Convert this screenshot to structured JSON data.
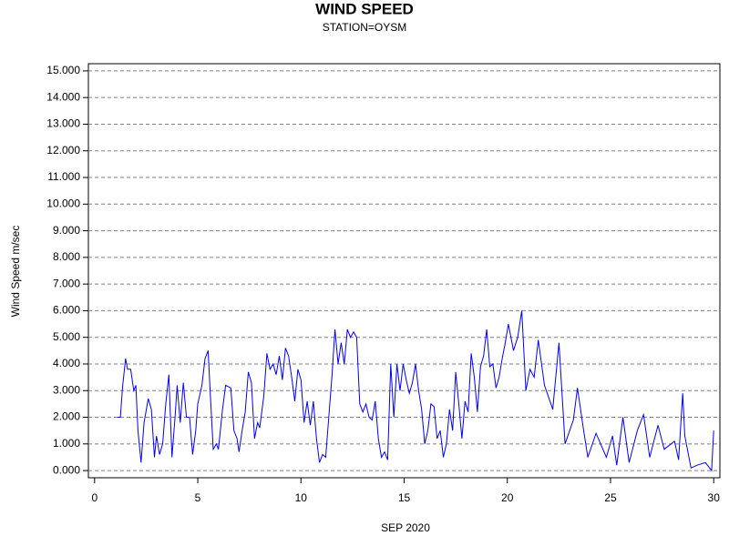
{
  "chart_data": {
    "type": "line",
    "title": "WIND SPEED",
    "subtitle": "STATION=OYSM",
    "x_label": "SEP 2020",
    "y_label": "Wind Speed m/sec",
    "xlim": [
      -0.3,
      30.3
    ],
    "xticks": [
      0,
      5,
      10,
      15,
      20,
      25,
      30
    ],
    "ylim": [
      -0.27,
      15.27
    ],
    "yticks": [
      {
        "value": 0,
        "label": "0.000"
      },
      {
        "value": 1,
        "label": "1.000"
      },
      {
        "value": 2,
        "label": "2.000"
      },
      {
        "value": 3,
        "label": "3.000"
      },
      {
        "value": 4,
        "label": "4.000"
      },
      {
        "value": 5,
        "label": "5.000"
      },
      {
        "value": 6,
        "label": "6.000"
      },
      {
        "value": 7,
        "label": "7.000"
      },
      {
        "value": 8,
        "label": "8.000"
      },
      {
        "value": 9,
        "label": "9.000"
      },
      {
        "value": 10,
        "label": "10.000"
      },
      {
        "value": 11,
        "label": "11.000"
      },
      {
        "value": 12,
        "label": "12.000"
      },
      {
        "value": 13,
        "label": "13.000"
      },
      {
        "value": 14,
        "label": "14.000"
      },
      {
        "value": 15,
        "label": "15.000"
      }
    ],
    "grid": true,
    "series": [
      {
        "name": "Wind Speed",
        "color": "#0000ff",
        "x": [
          1.1,
          1.25,
          1.35,
          1.5,
          1.6,
          1.75,
          1.9,
          2.0,
          2.1,
          2.25,
          2.4,
          2.6,
          2.75,
          2.9,
          3.0,
          3.15,
          3.3,
          3.45,
          3.6,
          3.75,
          3.9,
          4.0,
          4.15,
          4.3,
          4.45,
          4.6,
          4.75,
          4.9,
          5.0,
          5.2,
          5.35,
          5.5,
          5.6,
          5.75,
          5.9,
          6.0,
          6.2,
          6.35,
          6.6,
          6.75,
          6.9,
          7.0,
          7.15,
          7.3,
          7.45,
          7.6,
          7.75,
          7.9,
          8.0,
          8.2,
          8.35,
          8.5,
          8.65,
          8.8,
          8.95,
          9.1,
          9.25,
          9.4,
          9.55,
          9.7,
          9.85,
          10.0,
          10.15,
          10.3,
          10.45,
          10.6,
          10.75,
          10.9,
          11.05,
          11.2,
          11.35,
          11.5,
          11.65,
          11.8,
          11.95,
          12.1,
          12.25,
          12.4,
          12.55,
          12.7,
          12.85,
          13.0,
          13.15,
          13.3,
          13.45,
          13.6,
          13.75,
          13.9,
          14.05,
          14.2,
          14.35,
          14.5,
          14.65,
          14.8,
          14.95,
          15.1,
          15.25,
          15.4,
          15.55,
          15.7,
          15.85,
          16.0,
          16.15,
          16.3,
          16.45,
          16.6,
          16.75,
          16.9,
          17.05,
          17.2,
          17.35,
          17.5,
          17.65,
          17.8,
          17.95,
          18.1,
          18.25,
          18.4,
          18.55,
          18.7,
          18.85,
          19.0,
          19.15,
          19.3,
          19.45,
          19.6,
          19.75,
          19.9,
          20.05,
          20.3,
          20.5,
          20.7,
          20.9,
          21.1,
          21.3,
          21.5,
          21.8,
          22.2,
          22.5,
          22.8,
          23.2,
          23.4,
          23.7,
          23.9,
          24.3,
          24.8,
          25.1,
          25.3,
          25.6,
          25.9,
          26.3,
          26.6,
          26.9,
          27.3,
          27.6,
          28.1,
          28.3,
          28.5,
          28.6,
          28.9,
          29.2,
          29.6,
          29.9,
          30.0
        ],
        "values": [
          2.0,
          2.0,
          3.1,
          4.2,
          3.8,
          3.8,
          3.0,
          3.2,
          1.5,
          0.3,
          1.8,
          2.7,
          2.3,
          0.5,
          1.3,
          0.6,
          1.0,
          2.5,
          3.6,
          0.5,
          2.0,
          3.2,
          1.8,
          3.3,
          2.0,
          2.0,
          0.6,
          1.5,
          2.5,
          3.2,
          4.2,
          4.5,
          3.0,
          0.8,
          1.0,
          0.8,
          2.3,
          3.2,
          3.1,
          1.5,
          1.2,
          0.7,
          1.5,
          2.2,
          3.7,
          3.3,
          1.2,
          1.8,
          1.6,
          2.8,
          4.4,
          3.8,
          4.0,
          3.6,
          4.3,
          3.4,
          4.6,
          4.3,
          3.5,
          2.6,
          3.8,
          3.4,
          1.8,
          2.6,
          1.7,
          2.6,
          1.2,
          0.3,
          0.6,
          0.5,
          2.0,
          3.5,
          5.3,
          4.0,
          4.8,
          4.0,
          5.3,
          5.0,
          5.2,
          5.0,
          2.5,
          2.2,
          2.5,
          2.0,
          1.9,
          2.6,
          1.2,
          0.5,
          0.7,
          0.4,
          4.0,
          2.0,
          4.0,
          3.0,
          4.0,
          3.4,
          2.9,
          3.3,
          4.0,
          3.0,
          2.3,
          1.0,
          1.5,
          2.5,
          2.4,
          1.2,
          1.5,
          0.5,
          1.0,
          2.3,
          1.5,
          3.7,
          2.5,
          1.2,
          2.6,
          2.2,
          4.4,
          3.5,
          2.2,
          3.9,
          4.3,
          5.3,
          3.9,
          4.0,
          3.1,
          3.5,
          4.2,
          4.8,
          5.5,
          4.5,
          5.0,
          6.0,
          3.0,
          3.8,
          3.5,
          4.9,
          3.2,
          2.3,
          4.8,
          1.0,
          1.9,
          3.1,
          1.5,
          0.5,
          1.4,
          0.5,
          1.3,
          0.2,
          2.0,
          0.3,
          1.5,
          2.1,
          0.5,
          1.7,
          0.8,
          1.1,
          0.4,
          2.9,
          1.3,
          0.1,
          0.2,
          0.3,
          0.0,
          1.5
        ]
      }
    ]
  }
}
